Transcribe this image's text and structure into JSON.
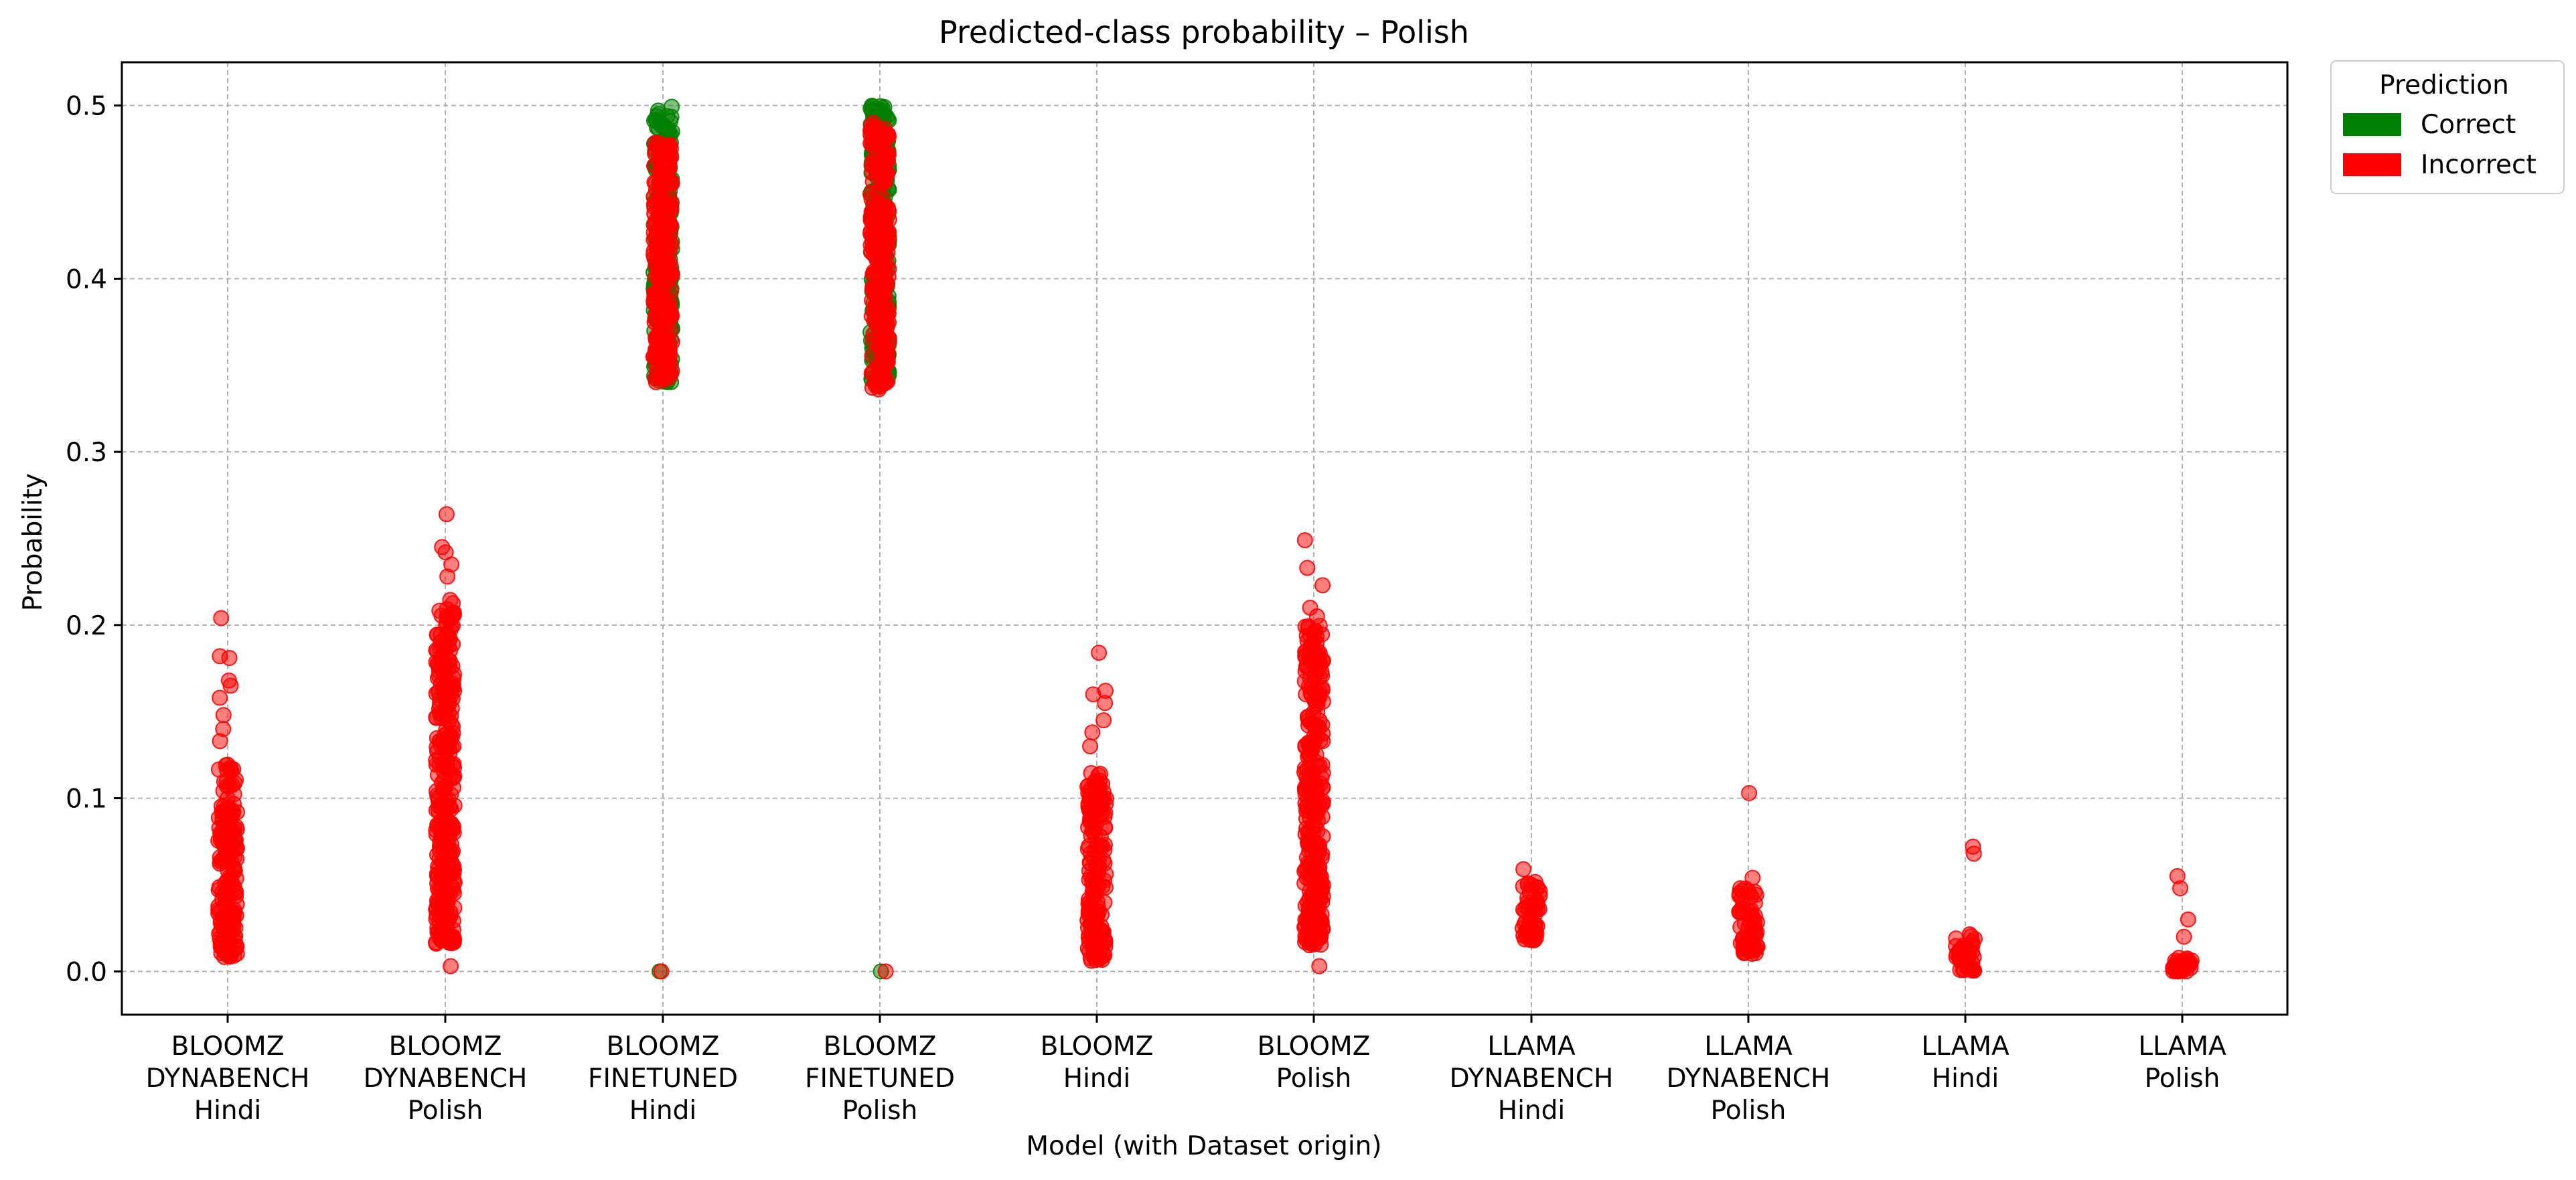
{
  "chart_data": {
    "type": "scatter",
    "title": "Predicted-class probability – Polish",
    "xlabel": "Model (with Dataset origin)",
    "ylabel": "Probability",
    "ylim": [
      -0.025,
      0.525
    ],
    "yticks": [
      0.0,
      0.1,
      0.2,
      0.3,
      0.4,
      0.5
    ],
    "ytick_labels": [
      "0.0",
      "0.1",
      "0.2",
      "0.3",
      "0.4",
      "0.5"
    ],
    "grid": true,
    "legend_placement": "outside top-right",
    "legend": {
      "title": "Prediction",
      "entries": [
        {
          "label": "Correct",
          "color": "#008000"
        },
        {
          "label": "Incorrect",
          "color": "#ff0000"
        }
      ]
    },
    "categories": [
      [
        "BLOOMZ",
        "DYNABENCH",
        "Hindi"
      ],
      [
        "BLOOMZ",
        "DYNABENCH",
        "Polish"
      ],
      [
        "BLOOMZ",
        "FINETUNED",
        "Hindi"
      ],
      [
        "BLOOMZ",
        "FINETUNED",
        "Polish"
      ],
      [
        "BLOOMZ",
        "Hindi"
      ],
      [
        "BLOOMZ",
        "Polish"
      ],
      [
        "LLAMA",
        "DYNABENCH",
        "Hindi"
      ],
      [
        "LLAMA",
        "DYNABENCH",
        "Polish"
      ],
      [
        "LLAMA",
        "Hindi"
      ],
      [
        "LLAMA",
        "Polish"
      ]
    ],
    "distributions": [
      {
        "correct": null,
        "incorrect": {
          "dense": [
            0.008,
            0.12
          ],
          "outliers": [
            0.204,
            0.182,
            0.181,
            0.168,
            0.165,
            0.158,
            0.148,
            0.14,
            0.133
          ]
        }
      },
      {
        "correct": null,
        "incorrect": {
          "dense": [
            0.016,
            0.215
          ],
          "outliers": [
            0.264,
            0.245,
            0.242,
            0.235,
            0.228,
            0.003
          ]
        }
      },
      {
        "correct": {
          "dense": [
            0.34,
            0.5
          ],
          "outliers": [
            0.0
          ]
        },
        "incorrect": {
          "dense": [
            0.34,
            0.48
          ],
          "outliers": [
            0.0
          ]
        }
      },
      {
        "correct": {
          "dense": [
            0.34,
            0.5
          ],
          "outliers": [
            0.0
          ]
        },
        "incorrect": {
          "dense": [
            0.335,
            0.49
          ],
          "outliers": [
            0.0
          ]
        }
      },
      {
        "correct": null,
        "incorrect": {
          "dense": [
            0.006,
            0.115
          ],
          "outliers": [
            0.184,
            0.162,
            0.16,
            0.155,
            0.145,
            0.138,
            0.13
          ]
        }
      },
      {
        "correct": null,
        "incorrect": {
          "dense": [
            0.015,
            0.2
          ],
          "outliers": [
            0.249,
            0.233,
            0.223,
            0.21,
            0.205,
            0.003
          ]
        }
      },
      {
        "correct": null,
        "incorrect": {
          "dense": [
            0.018,
            0.052
          ],
          "outliers": [
            0.059
          ]
        }
      },
      {
        "correct": null,
        "incorrect": {
          "dense": [
            0.01,
            0.048
          ],
          "outliers": [
            0.103,
            0.054
          ]
        }
      },
      {
        "correct": null,
        "incorrect": {
          "dense": [
            0.0,
            0.022
          ],
          "outliers": [
            0.072,
            0.068
          ]
        }
      },
      {
        "correct": null,
        "incorrect": {
          "dense": [
            0.0,
            0.008
          ],
          "outliers": [
            0.055,
            0.048,
            0.03,
            0.02
          ]
        }
      }
    ]
  }
}
